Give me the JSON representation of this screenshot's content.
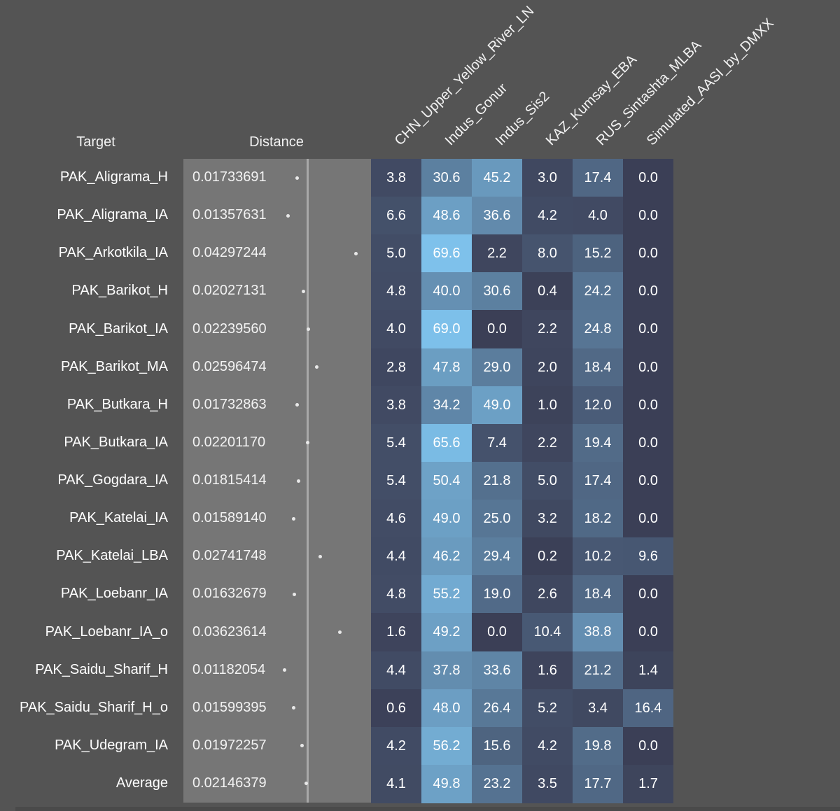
{
  "chart_data": {
    "type": "heatmap",
    "headers": {
      "target": "Target",
      "distance": "Distance"
    },
    "columns": [
      "CHN_Upper_Yellow_River_LN",
      "Indus_Gonur",
      "Indus_Sis2",
      "KAZ_Kumsay_EBA",
      "RUS_Sintashta_MLBA",
      "Simulated_AASI_by_DMXX"
    ],
    "rows": [
      {
        "label": "PAK_Aligrama_H",
        "distance": "0.01733691",
        "values": [
          "3.8",
          "30.6",
          "45.2",
          "3.0",
          "17.4",
          "0.0"
        ]
      },
      {
        "label": "PAK_Aligrama_IA",
        "distance": "0.01357631",
        "values": [
          "6.6",
          "48.6",
          "36.6",
          "4.2",
          "4.0",
          "0.0"
        ]
      },
      {
        "label": "PAK_Arkotkila_IA",
        "distance": "0.04297244",
        "values": [
          "5.0",
          "69.6",
          "2.2",
          "8.0",
          "15.2",
          "0.0"
        ]
      },
      {
        "label": "PAK_Barikot_H",
        "distance": "0.02027131",
        "values": [
          "4.8",
          "40.0",
          "30.6",
          "0.4",
          "24.2",
          "0.0"
        ]
      },
      {
        "label": "PAK_Barikot_IA",
        "distance": "0.02239560",
        "values": [
          "4.0",
          "69.0",
          "0.0",
          "2.2",
          "24.8",
          "0.0"
        ]
      },
      {
        "label": "PAK_Barikot_MA",
        "distance": "0.02596474",
        "values": [
          "2.8",
          "47.8",
          "29.0",
          "2.0",
          "18.4",
          "0.0"
        ]
      },
      {
        "label": "PAK_Butkara_H",
        "distance": "0.01732863",
        "values": [
          "3.8",
          "34.2",
          "49.0",
          "1.0",
          "12.0",
          "0.0"
        ]
      },
      {
        "label": "PAK_Butkara_IA",
        "distance": "0.02201170",
        "values": [
          "5.4",
          "65.6",
          "7.4",
          "2.2",
          "19.4",
          "0.0"
        ]
      },
      {
        "label": "PAK_Gogdara_IA",
        "distance": "0.01815414",
        "values": [
          "5.4",
          "50.4",
          "21.8",
          "5.0",
          "17.4",
          "0.0"
        ]
      },
      {
        "label": "PAK_Katelai_IA",
        "distance": "0.01589140",
        "values": [
          "4.6",
          "49.0",
          "25.0",
          "3.2",
          "18.2",
          "0.0"
        ]
      },
      {
        "label": "PAK_Katelai_LBA",
        "distance": "0.02741748",
        "values": [
          "4.4",
          "46.2",
          "29.4",
          "0.2",
          "10.2",
          "9.6"
        ]
      },
      {
        "label": "PAK_Loebanr_IA",
        "distance": "0.01632679",
        "values": [
          "4.8",
          "55.2",
          "19.0",
          "2.6",
          "18.4",
          "0.0"
        ]
      },
      {
        "label": "PAK_Loebanr_IA_o",
        "distance": "0.03623614",
        "values": [
          "1.6",
          "49.2",
          "0.0",
          "10.4",
          "38.8",
          "0.0"
        ]
      },
      {
        "label": "PAK_Saidu_Sharif_H",
        "distance": "0.01182054",
        "values": [
          "4.4",
          "37.8",
          "33.6",
          "1.6",
          "21.2",
          "1.4"
        ]
      },
      {
        "label": "PAK_Saidu_Sharif_H_o",
        "distance": "0.01599395",
        "values": [
          "0.6",
          "48.0",
          "26.4",
          "5.2",
          "3.4",
          "16.4"
        ]
      },
      {
        "label": "PAK_Udegram_IA",
        "distance": "0.01972257",
        "values": [
          "4.2",
          "56.2",
          "15.6",
          "4.2",
          "19.8",
          "0.0"
        ]
      },
      {
        "label": "Average",
        "distance": "0.02146379",
        "values": [
          "4.1",
          "49.8",
          "23.2",
          "3.5",
          "17.7",
          "1.7"
        ]
      }
    ],
    "colors": {
      "background": "#545454",
      "distance_panel": "#767676",
      "distance_axis": "#a8a8a8",
      "cell_low": "#3b3f56",
      "cell_high": "#7ec2ec"
    }
  }
}
